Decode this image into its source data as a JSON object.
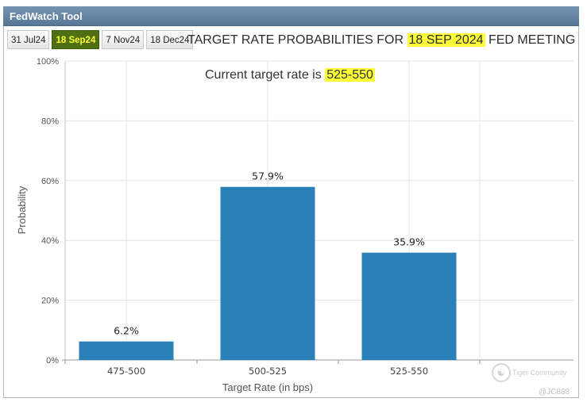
{
  "window": {
    "title": "FedWatch Tool"
  },
  "tabs": [
    {
      "label": "31 Jul24",
      "active": false
    },
    {
      "label": "18 Sep24",
      "active": true
    },
    {
      "label": "7 Nov24",
      "active": false
    },
    {
      "label": "18 Dec24",
      "active": false
    }
  ],
  "header": {
    "title_prefix": "TARGET RATE PROBABILITIES FOR",
    "title_date": "18 SEP 2024",
    "title_suffix": "FED MEETING"
  },
  "current_rate": {
    "prefix": "Current target rate is",
    "value": "525-550"
  },
  "colors": {
    "bar": "#2b80b9",
    "highlight": "#ffff38",
    "active_tab": "#4e6f12",
    "active_tab_text": "#ffff33",
    "titlebar": "#6784a3"
  },
  "chart_data": {
    "type": "bar",
    "categories": [
      "475-500",
      "500-525",
      "525-550"
    ],
    "values": [
      6.2,
      57.9,
      35.9
    ],
    "value_labels": [
      "6.2%",
      "57.9%",
      "35.9%"
    ],
    "xlabel": "Target Rate (in bps)",
    "ylabel": "Probability",
    "ylim": [
      0,
      100
    ],
    "yticks": [
      0,
      20,
      40,
      60,
      80,
      100
    ],
    "ytick_labels": [
      "0%",
      "20%",
      "40%",
      "60%",
      "80%",
      "100%"
    ],
    "grid": true
  },
  "watermark": {
    "logo_glyph": "☯",
    "brand": "Tiger Community",
    "user": "@JC888"
  }
}
